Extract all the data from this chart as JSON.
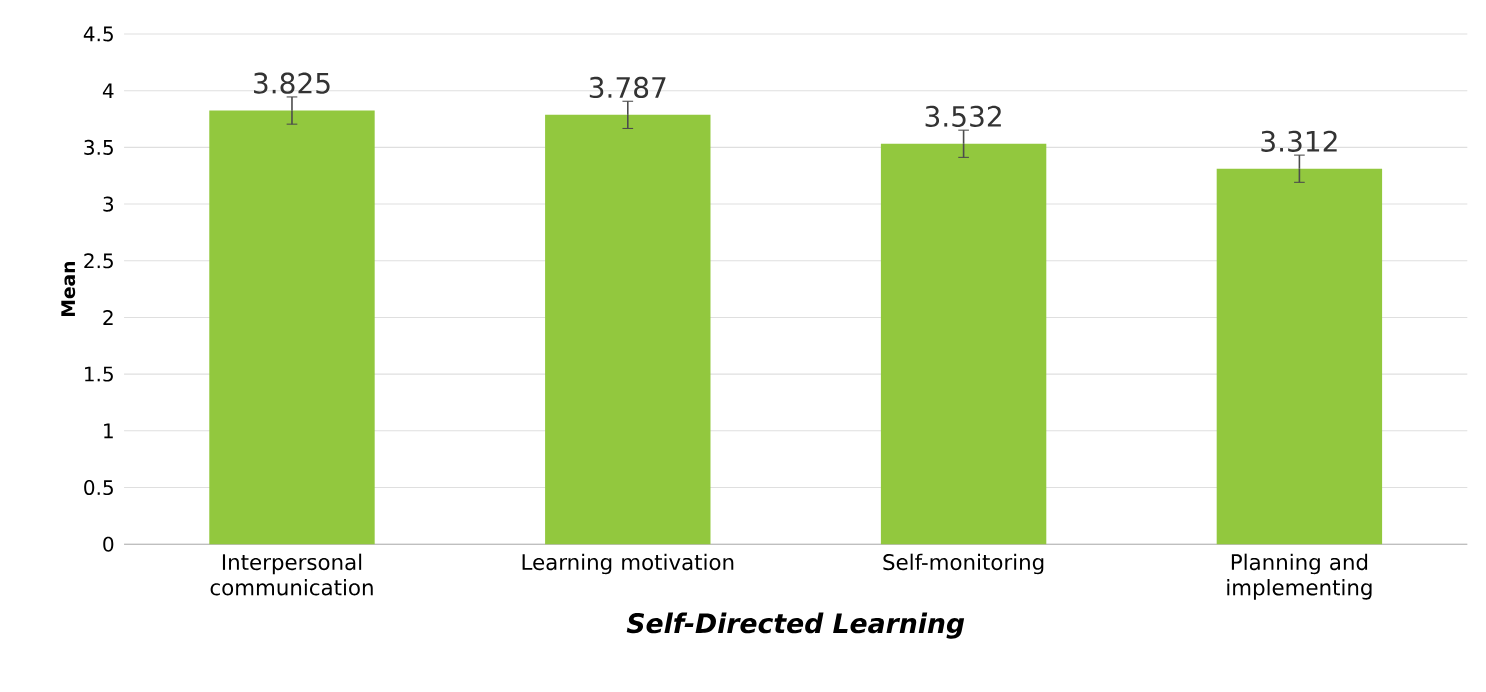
{
  "chart_data": {
    "type": "bar",
    "xlabel": "**Self-Directed Learning**",
    "ylabel": "Mean",
    "categories": [
      "Interpersonal communication",
      "Learning motivation",
      "Self-monitoring",
      "Planning and implementing"
    ],
    "values": [
      3.825,
      3.787,
      3.532,
      3.312
    ],
    "errors": [
      0.12,
      0.12,
      0.12,
      0.12
    ],
    "color": "#92c83e",
    "data_labels": true,
    "ylim": [
      0,
      4.5
    ],
    "yticks": [
      0,
      0.5,
      1,
      1.5,
      2,
      2.5,
      3,
      3.5,
      4,
      4.5
    ],
    "grid": "y"
  }
}
